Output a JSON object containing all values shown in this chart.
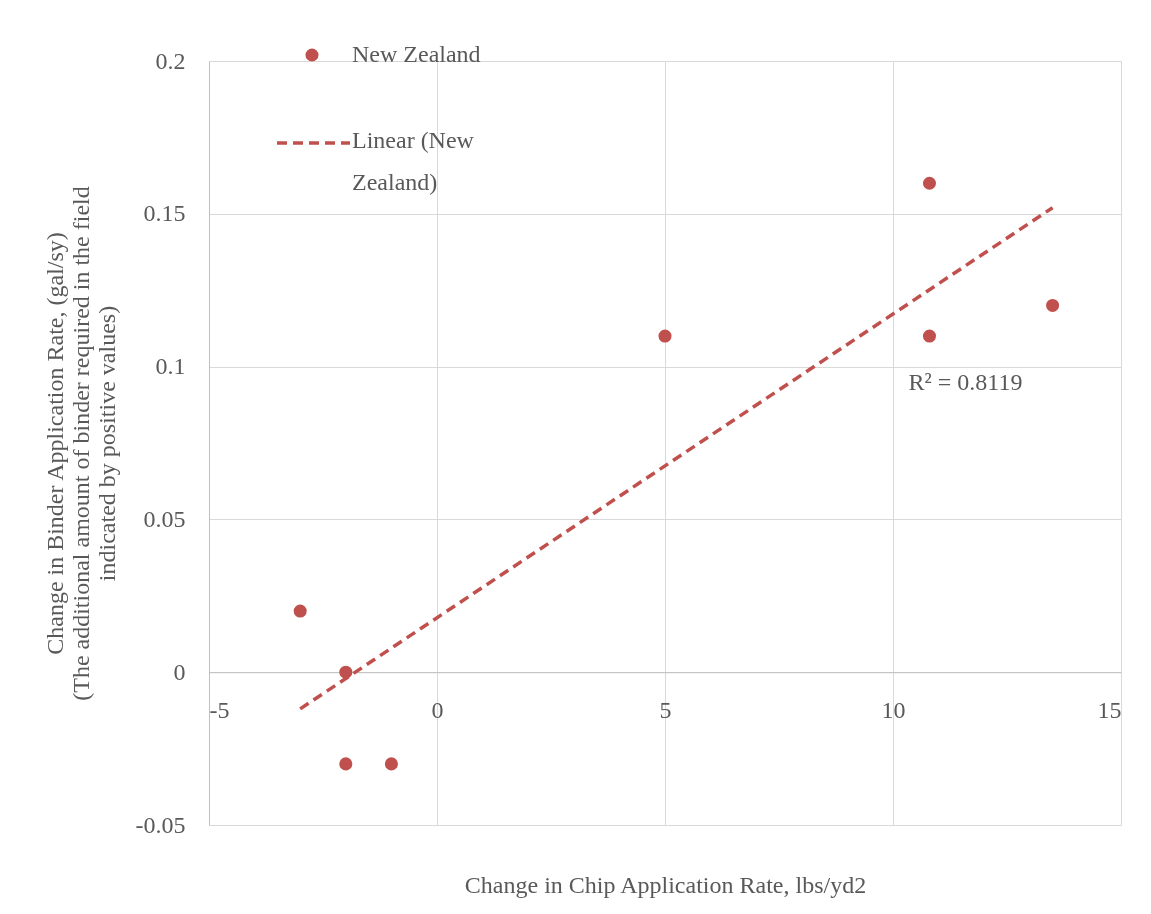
{
  "chart_data": {
    "type": "scatter",
    "xlabel": "Change in Chip Application Rate, lbs/yd2",
    "ylabel": "Change in Binder Application Rate, (gal/sy)\n(The additional amount of binder required in the field\nindicated by positive values)",
    "x": [
      -3,
      -2,
      -2,
      -1,
      5,
      10.8,
      10.8,
      13.5
    ],
    "series": [
      {
        "name": "New Zealand",
        "color": "#c0504d",
        "marker": "circle",
        "values": [
          0.02,
          0,
          -0.03,
          -0.03,
          0.11,
          0.16,
          0.11,
          0.12
        ]
      },
      {
        "name": "Linear (New Zealand)",
        "color": "#c0504d",
        "type": "line",
        "line_style": "dashed",
        "x": [
          -3,
          13.5
        ],
        "values": [
          -0.012,
          0.152
        ]
      }
    ],
    "annotations": [
      "R² = 0.8119"
    ],
    "xlim": [
      -5,
      15
    ],
    "xticks": [
      -5,
      0,
      5,
      10,
      15
    ],
    "ylim": [
      -0.05,
      0.2
    ],
    "yticks": [
      -0.05,
      0,
      0.05,
      0.1,
      0.15,
      0.2
    ],
    "grid": true,
    "legend": "top"
  }
}
